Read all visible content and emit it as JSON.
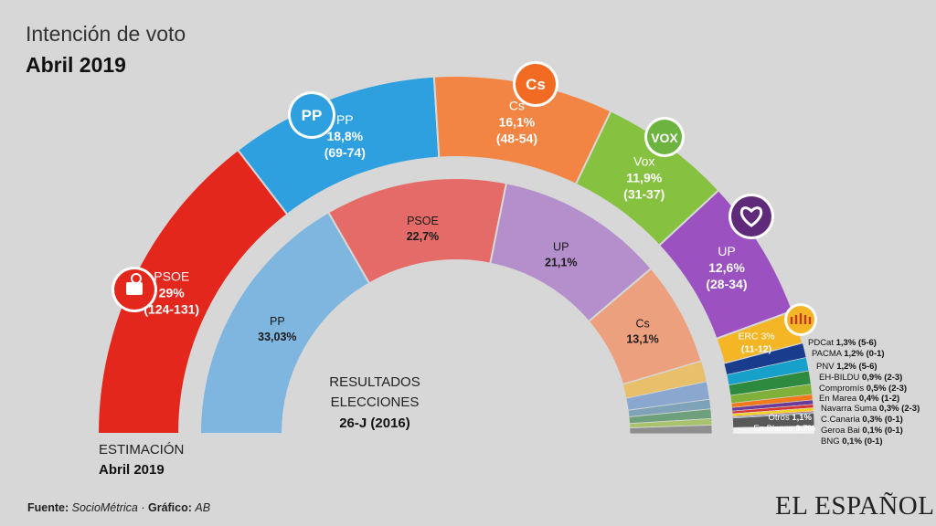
{
  "header": {
    "title": "Intención de voto",
    "subtitle": "Abril 2019"
  },
  "chart_data": {
    "type": "pie",
    "charts": [
      {
        "id": "outer",
        "caption_line1": "ESTIMACIÓN",
        "caption_line2": "Abril 2019",
        "slices": [
          {
            "party": "PSOE",
            "percent": 29,
            "value_label": "29%",
            "seats": "(124-131)",
            "color": "#e3271c"
          },
          {
            "party": "PP",
            "percent": 18.8,
            "value_label": "18,8%",
            "seats": "(69-74)",
            "color": "#2ea0df"
          },
          {
            "party": "Cs",
            "percent": 16.1,
            "value_label": "16,1%",
            "seats": "(48-54)",
            "color": "#f28543"
          },
          {
            "party": "Vox",
            "percent": 11.9,
            "value_label": "11,9%",
            "seats": "(31-37)",
            "color": "#86c13f"
          },
          {
            "party": "UP",
            "percent": 12.6,
            "value_label": "12,6%",
            "seats": "(28-34)",
            "color": "#9b51bf"
          },
          {
            "party": "ERC",
            "percent": 3,
            "value_label": "3%",
            "seats": "(11-12)",
            "color": "#f4b625"
          },
          {
            "party": "PDCat",
            "percent": 1.3,
            "value_label": "1,3%",
            "seats": "(5-6)",
            "color": "#1a3c8c"
          },
          {
            "party": "PACMA",
            "percent": 1.2,
            "value_label": "1,2%",
            "seats": "(0-1)",
            "color": "#17a0c9"
          },
          {
            "party": "PNV",
            "percent": 1.2,
            "value_label": "1,2%",
            "seats": "(5-6)",
            "color": "#2e8a3e"
          },
          {
            "party": "EH-BILDU",
            "percent": 0.9,
            "value_label": "0,9%",
            "seats": "(2-3)",
            "color": "#7fb13a"
          },
          {
            "party": "Compromís",
            "percent": 0.5,
            "value_label": "0,5%",
            "seats": "(2-3)",
            "color": "#f07a1a"
          },
          {
            "party": "En Marea",
            "percent": 0.4,
            "value_label": "0,4%",
            "seats": "(1-2)",
            "color": "#6c3a98"
          },
          {
            "party": "Navarra Suma",
            "percent": 0.3,
            "value_label": "0,3%",
            "seats": "(2-3)",
            "color": "#d93535"
          },
          {
            "party": "C.Canaria",
            "percent": 0.3,
            "value_label": "0,3%",
            "seats": "(0-1)",
            "color": "#f3d221"
          },
          {
            "party": "Geroa Bai",
            "percent": 0.1,
            "value_label": "0,1%",
            "seats": "(0-1)",
            "color": "#c4262e"
          },
          {
            "party": "BNG",
            "percent": 0.1,
            "value_label": "0,1%",
            "seats": "(0-1)",
            "color": "#4ba3d6"
          },
          {
            "party": "Otros",
            "percent": 1.1,
            "value_label": "1,1%",
            "seats": "",
            "color": "#585858"
          },
          {
            "party": "En Blanco",
            "percent": 0.7,
            "value_label": "0,7%",
            "seats": "",
            "color": "#f2f2f2"
          }
        ]
      },
      {
        "id": "inner",
        "caption_line1": "RESULTADOS",
        "caption_line2": "ELECCIONES",
        "caption_line3": "26-J (2016)",
        "slices": [
          {
            "party": "PP",
            "percent": 33.03,
            "value_label": "33,03%",
            "color": "#7fb6df"
          },
          {
            "party": "PSOE",
            "percent": 22.7,
            "value_label": "22,7%",
            "color": "#e46b68"
          },
          {
            "party": "UP",
            "percent": 21.1,
            "value_label": "21,1%",
            "color": "#b58fcb"
          },
          {
            "party": "Cs",
            "percent": 13.1,
            "value_label": "13,1%",
            "color": "#eca07d"
          },
          {
            "party": "",
            "percent": 2.6,
            "value_label": "",
            "color": "#e8c06b"
          },
          {
            "party": "",
            "percent": 2.2,
            "value_label": "",
            "color": "#8aa8cf"
          },
          {
            "party": "",
            "percent": 1.2,
            "value_label": "",
            "color": "#7ea2b8"
          },
          {
            "party": "",
            "percent": 1.2,
            "value_label": "",
            "color": "#6fa07c"
          },
          {
            "party": "",
            "percent": 0.8,
            "value_label": "",
            "color": "#a7c46d"
          },
          {
            "party": "",
            "percent": 1.07,
            "value_label": "",
            "color": "#8e8e8e"
          }
        ]
      }
    ],
    "logos": [
      {
        "party": "PSOE",
        "text": "",
        "color": "#e3271c"
      },
      {
        "party": "PP",
        "text": "PP",
        "color": "#2ea0df"
      },
      {
        "party": "Cs",
        "text": "Cs",
        "color": "#f26b22"
      },
      {
        "party": "Vox",
        "text": "VOX",
        "color": "#6db33f"
      },
      {
        "party": "UP",
        "text": "",
        "color": "#5f2a7a"
      },
      {
        "party": "ERC",
        "text": "",
        "color": "#f4b625"
      }
    ]
  },
  "footer": {
    "source_label": "Fuente:",
    "source": "SocioMétrica",
    "sep": " · ",
    "chart_label": "Gráfico:",
    "author": "AB",
    "brand": "EL ESPAÑOL"
  }
}
